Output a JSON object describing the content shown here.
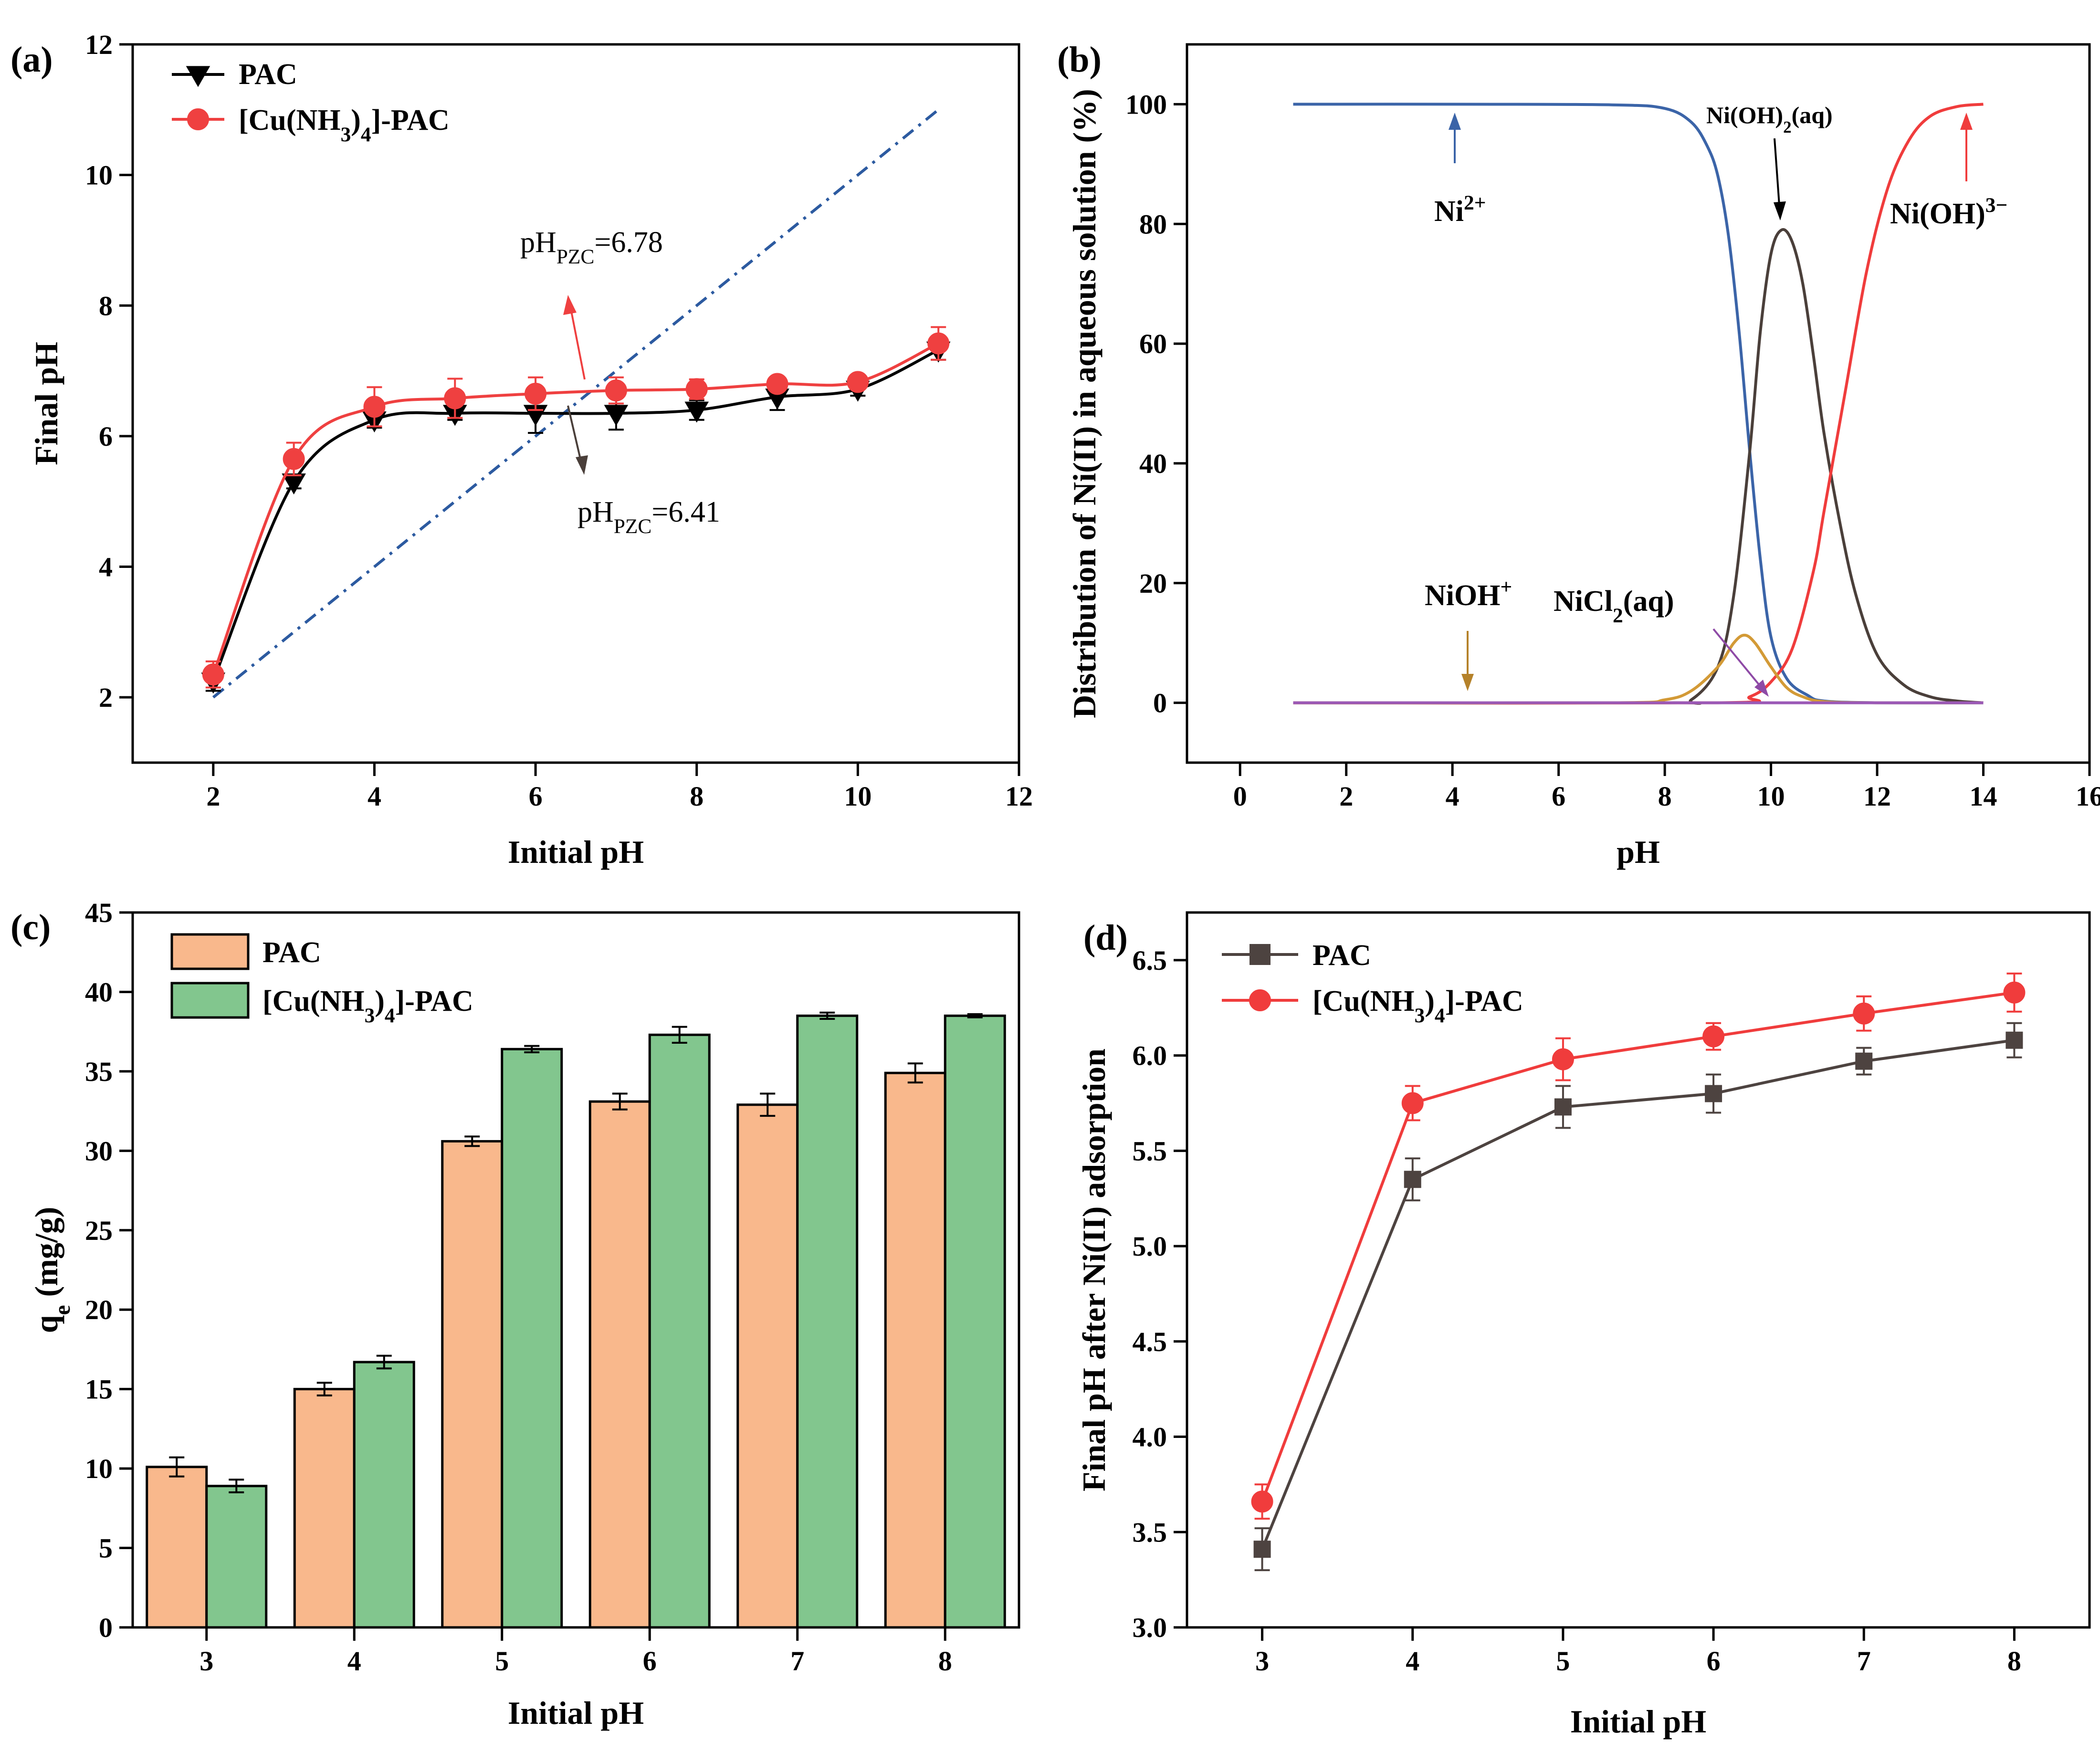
{
  "chart_data": [
    {
      "panel": "(a)",
      "type": "line",
      "xlabel": "Initial pH",
      "ylabel": "Final pH",
      "xlim": [
        1,
        12
      ],
      "ylim": [
        1,
        12
      ],
      "xticks": [
        2,
        4,
        6,
        8,
        10,
        12
      ],
      "yticks": [
        2,
        4,
        6,
        8,
        10,
        12
      ],
      "legend": "top-left",
      "series": [
        {
          "name": "PAC",
          "color": "#000000",
          "marker": "triangle-down",
          "x": [
            2,
            3,
            4,
            5,
            6,
            7,
            8,
            9,
            10,
            11
          ],
          "y": [
            2.25,
            5.3,
            6.25,
            6.35,
            6.35,
            6.35,
            6.4,
            6.6,
            6.72,
            7.32
          ],
          "err": [
            0.15,
            0.1,
            0.12,
            0.1,
            0.3,
            0.25,
            0.15,
            0.2,
            0.1,
            0.15
          ]
        },
        {
          "name": "[Cu(NH3)4]-PAC",
          "color": "#ef4040",
          "marker": "circle",
          "x": [
            2,
            3,
            4,
            5,
            6,
            7,
            8,
            9,
            10,
            11
          ],
          "y": [
            2.35,
            5.65,
            6.45,
            6.58,
            6.65,
            6.7,
            6.72,
            6.8,
            6.83,
            7.42
          ],
          "err": [
            0.2,
            0.25,
            0.3,
            0.3,
            0.25,
            0.2,
            0.15,
            0.1,
            0.1,
            0.25
          ]
        },
        {
          "name": "y=x reference",
          "color": "#2c5aa0",
          "dash": true,
          "x": [
            2,
            11
          ],
          "y": [
            2,
            11
          ]
        }
      ],
      "annotations": [
        {
          "base": "pH",
          "sub": "PZC",
          "tail": "=6.78",
          "color": "#2b3a87"
        },
        {
          "base": "pH",
          "sub": "PZC",
          "tail": "=6.41",
          "color": "#2b3a87"
        }
      ]
    },
    {
      "panel": "(b)",
      "type": "line",
      "xlabel": "pH",
      "ylabel": "Distribution of Ni(II) in aqueous solution (%)",
      "xlim": [
        -1,
        16
      ],
      "ylim": [
        -10,
        110
      ],
      "xticks": [
        0,
        2,
        4,
        6,
        8,
        10,
        12,
        14,
        16
      ],
      "yticks": [
        0,
        20,
        40,
        60,
        80,
        100
      ],
      "series": [
        {
          "name": "Ni2+",
          "color": "#3b64a8",
          "x": [
            1,
            4,
            7,
            8,
            8.5,
            8.8,
            9,
            9.2,
            9.4,
            9.6,
            9.8,
            10,
            10.3,
            10.7,
            11,
            12,
            14
          ],
          "y": [
            100,
            100,
            99.9,
            99.3,
            97,
            93,
            88,
            78,
            62,
            42,
            24,
            11,
            4,
            1.2,
            0.3,
            0,
            0
          ]
        },
        {
          "name": "Ni(OH)2(aq)",
          "color": "#4a3f3a",
          "x": [
            1,
            8,
            8.5,
            9,
            9.3,
            9.6,
            9.8,
            10,
            10.2,
            10.4,
            10.6,
            10.8,
            11,
            11.3,
            11.6,
            12,
            12.5,
            13,
            13.5,
            14
          ],
          "y": [
            0,
            0,
            0.5,
            6,
            18,
            42,
            62,
            75,
            79,
            77,
            70,
            58,
            45,
            30,
            18,
            8,
            3,
            1,
            0.3,
            0
          ]
        },
        {
          "name": "Ni(OH)3-",
          "color": "#f03c3c",
          "x": [
            1,
            9,
            9.6,
            10,
            10.4,
            10.8,
            11,
            11.4,
            11.8,
            12.2,
            12.6,
            13,
            13.5,
            14
          ],
          "y": [
            0,
            0,
            1,
            3.5,
            9,
            22,
            32,
            52,
            72,
            86,
            94,
            98,
            99.6,
            100
          ]
        },
        {
          "name": "NiOH+",
          "color": "#d39a36",
          "x": [
            1,
            7,
            8,
            8.5,
            9,
            9.3,
            9.5,
            9.7,
            10,
            10.3,
            10.6,
            11,
            12,
            14
          ],
          "y": [
            0,
            0,
            0.5,
            2,
            6,
            10,
            11.3,
            10,
            6,
            2.5,
            1,
            0.2,
            0,
            0
          ]
        },
        {
          "name": "NiCl2(aq)",
          "color": "#9b59b6",
          "x": [
            1,
            14
          ],
          "y": [
            0,
            0
          ]
        }
      ],
      "labels": {
        "ni2": {
          "base": "Ni",
          "sup": "2+"
        },
        "nioh2": {
          "base": "Ni(OH)",
          "sub": "2",
          "tail": "(aq)"
        },
        "nioh3": {
          "base": "Ni(OH)",
          "sup": "3−"
        },
        "nioh": {
          "base": "NiOH",
          "sup": "+"
        },
        "nicl2": {
          "base": "NiCl",
          "sub": "2",
          "tail": "(aq)"
        }
      }
    },
    {
      "panel": "(c)",
      "type": "bar",
      "xlabel": "Initial pH",
      "ylabel_base": "q",
      "ylabel_sub": "e",
      "ylabel_tail": " (mg/g)",
      "categories": [
        "3",
        "4",
        "5",
        "6",
        "7",
        "8"
      ],
      "ylim": [
        0,
        45
      ],
      "yticks": [
        0,
        5,
        10,
        15,
        20,
        25,
        30,
        35,
        40,
        45
      ],
      "legend": "top-left",
      "series": [
        {
          "name": "PAC",
          "color": "#f9b88c",
          "values": [
            10.1,
            15.0,
            30.6,
            33.1,
            32.9,
            34.9
          ],
          "err": [
            0.6,
            0.4,
            0.3,
            0.5,
            0.7,
            0.6
          ]
        },
        {
          "name": "[Cu(NH3)4]-PAC",
          "color": "#82c68e",
          "values": [
            8.9,
            16.7,
            36.4,
            37.3,
            38.5,
            38.5
          ],
          "err": [
            0.4,
            0.4,
            0.2,
            0.5,
            0.2,
            0.1
          ]
        }
      ]
    },
    {
      "panel": "(d)",
      "type": "line",
      "xlabel": "Initial pH",
      "ylabel": "Final pH after Ni(II) adsorption",
      "xlim": [
        2.5,
        8.5
      ],
      "ylim": [
        3.0,
        6.75
      ],
      "xticks": [
        3,
        4,
        5,
        6,
        7,
        8
      ],
      "yticks": [
        3.0,
        3.5,
        4.0,
        4.5,
        5.0,
        5.5,
        6.0,
        6.5
      ],
      "legend": "top-left",
      "series": [
        {
          "name": "PAC",
          "color": "#4d4340",
          "marker": "square",
          "x": [
            3,
            4,
            5,
            6,
            7,
            8
          ],
          "y": [
            3.41,
            5.35,
            5.73,
            5.8,
            5.97,
            6.08
          ],
          "err": [
            0.11,
            0.11,
            0.11,
            0.1,
            0.07,
            0.09
          ]
        },
        {
          "name": "[Cu(NH3)4]-PAC",
          "color": "#f03c3c",
          "marker": "circle",
          "x": [
            3,
            4,
            5,
            6,
            7,
            8
          ],
          "y": [
            3.66,
            5.75,
            5.98,
            6.1,
            6.22,
            6.33
          ],
          "err": [
            0.09,
            0.09,
            0.11,
            0.07,
            0.09,
            0.1
          ]
        }
      ]
    }
  ]
}
